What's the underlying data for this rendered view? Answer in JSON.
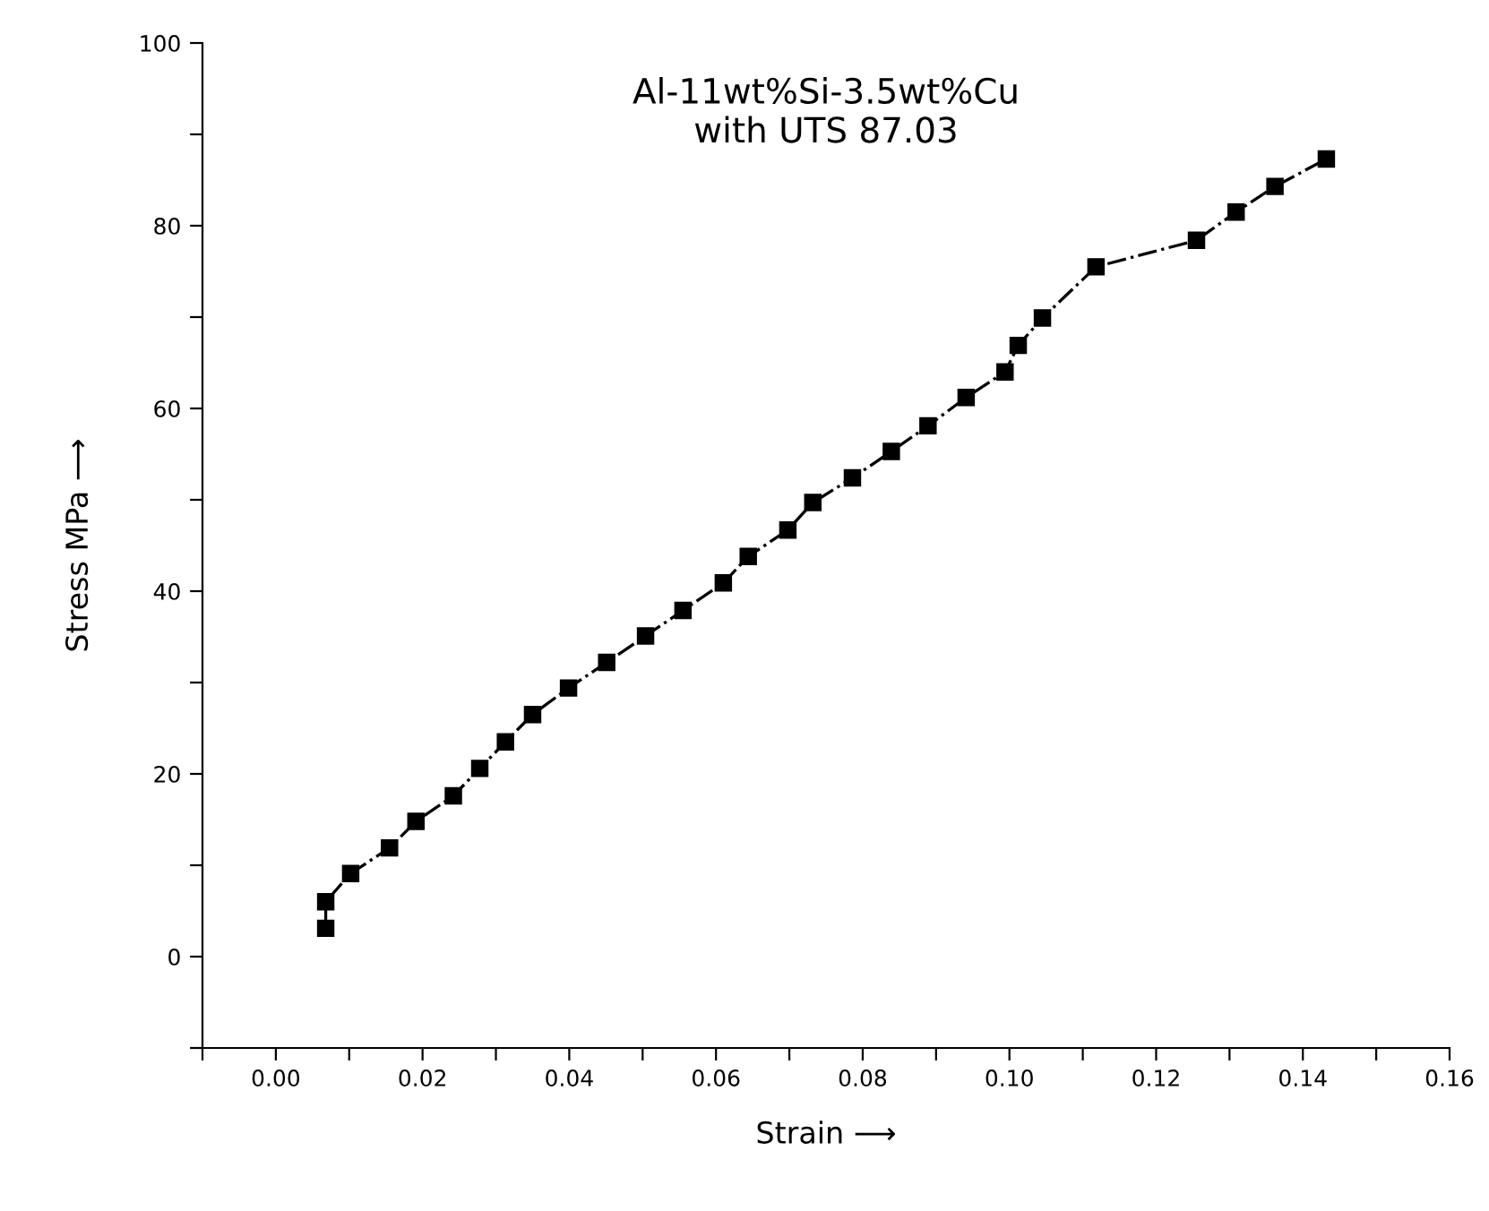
{
  "chart_data": {
    "type": "line",
    "title": "Al-11wt%Si-3.5wt%Cu\nwith UTS 87.03",
    "xlabel": "Strain ⟶",
    "ylabel": "Stress MPa ⟶",
    "series": [
      {
        "color": "#000000",
        "x": [
          0.0068,
          0.0068,
          0.0102,
          0.0155,
          0.0191,
          0.0242,
          0.0278,
          0.0313,
          0.035,
          0.0399,
          0.0451,
          0.0504,
          0.0555,
          0.061,
          0.0644,
          0.0698,
          0.0732,
          0.0786,
          0.0839,
          0.0889,
          0.0941,
          0.0994,
          0.1012,
          0.1045,
          0.1118,
          0.1255,
          0.1309,
          0.1362,
          0.1432
        ],
        "values": [
          3.1,
          6.0,
          9.1,
          11.9,
          14.8,
          17.6,
          20.6,
          23.5,
          26.5,
          29.4,
          32.2,
          35.1,
          37.9,
          40.9,
          43.8,
          46.7,
          49.7,
          52.4,
          55.3,
          58.1,
          61.2,
          64.0,
          66.9,
          69.9,
          75.5,
          78.4,
          81.5,
          84.3,
          87.3
        ]
      }
    ],
    "marker": "square",
    "line_style": "dashdot",
    "grid": false,
    "legend": false,
    "xlim": [
      -0.01,
      0.16
    ],
    "ylim": [
      -10,
      100
    ],
    "xticks": [
      {
        "value": -0.01,
        "label": null
      },
      {
        "value": 0,
        "label": "0.00"
      },
      {
        "value": 0.01,
        "label": null
      },
      {
        "value": 0.02,
        "label": "0.02"
      },
      {
        "value": 0.03,
        "label": null
      },
      {
        "value": 0.04,
        "label": "0.04"
      },
      {
        "value": 0.05,
        "label": null
      },
      {
        "value": 0.06,
        "label": "0.06"
      },
      {
        "value": 0.07,
        "label": null
      },
      {
        "value": 0.08,
        "label": "0.08"
      },
      {
        "value": 0.09,
        "label": null
      },
      {
        "value": 0.1,
        "label": "0.10"
      },
      {
        "value": 0.11,
        "label": null
      },
      {
        "value": 0.12,
        "label": "0.12"
      },
      {
        "value": 0.13,
        "label": null
      },
      {
        "value": 0.14,
        "label": "0.14"
      },
      {
        "value": 0.15,
        "label": null
      },
      {
        "value": 0.16,
        "label": "0.16"
      }
    ],
    "yticks": [
      {
        "value": -10,
        "label": null
      },
      0,
      {
        "value": 10,
        "label": null
      },
      20,
      {
        "value": 30,
        "label": null
      },
      40,
      {
        "value": 50,
        "label": null
      },
      60,
      {
        "value": 70,
        "label": null
      },
      80,
      {
        "value": 90,
        "label": null
      },
      100
    ]
  }
}
